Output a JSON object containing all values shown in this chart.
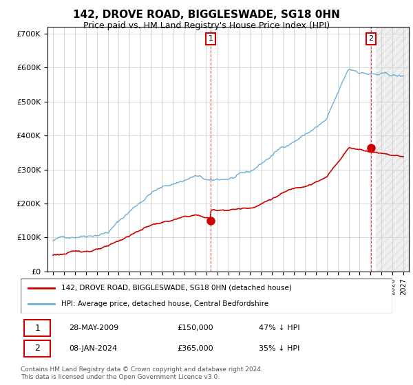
{
  "title": "142, DROVE ROAD, BIGGLESWADE, SG18 0HN",
  "subtitle": "Price paid vs. HM Land Registry's House Price Index (HPI)",
  "hpi_label": "HPI: Average price, detached house, Central Bedfordshire",
  "property_label": "142, DROVE ROAD, BIGGLESWADE, SG18 0HN (detached house)",
  "transaction1": {
    "date": "28-MAY-2009",
    "price": 150000,
    "pct": "47% ↓ HPI"
  },
  "transaction2": {
    "date": "08-JAN-2024",
    "price": 365000,
    "pct": "35% ↓ HPI"
  },
  "footnote": "Contains HM Land Registry data © Crown copyright and database right 2024.\nThis data is licensed under the Open Government Licence v3.0.",
  "ylim": [
    0,
    720000
  ],
  "yticks": [
    0,
    100000,
    200000,
    300000,
    400000,
    500000,
    600000,
    700000
  ],
  "ytick_labels": [
    "£0",
    "£100K",
    "£200K",
    "£300K",
    "£400K",
    "£500K",
    "£600K",
    "£700K"
  ],
  "hpi_color": "#6baed6",
  "property_color": "#cc0000",
  "background_color": "#ffffff",
  "grid_color": "#cccccc",
  "t1": 2009.4,
  "t2": 2024.05,
  "price1": 150000,
  "price2": 365000
}
